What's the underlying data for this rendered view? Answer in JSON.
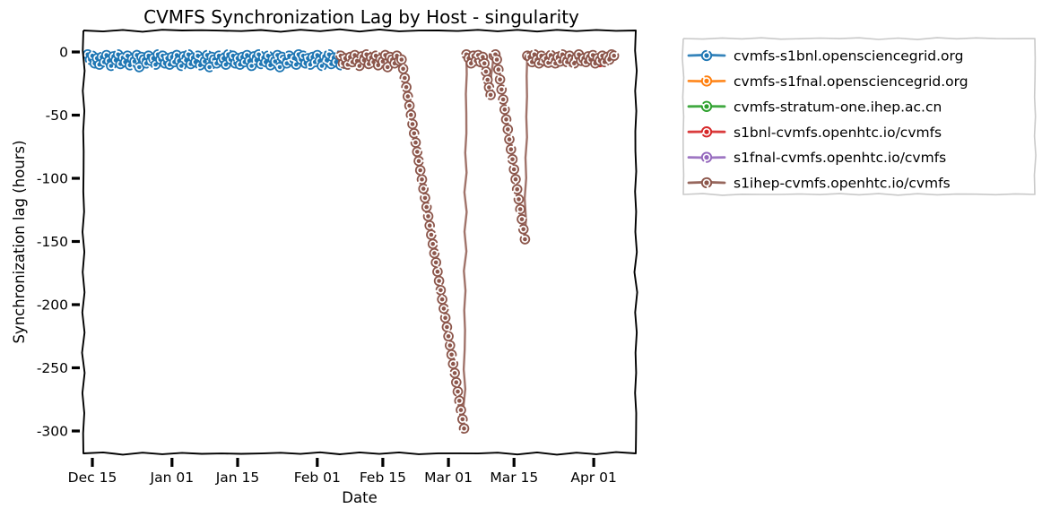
{
  "title": "CVMFS Synchronization Lag by Host - singularity",
  "axes": {
    "xlabel": "Date",
    "ylabel": "Synchronization lag (hours)",
    "x_ticks": [
      {
        "label": "Dec 15",
        "day": 0
      },
      {
        "label": "Jan 01",
        "day": 17
      },
      {
        "label": "Jan 15",
        "day": 31
      },
      {
        "label": "Feb 01",
        "day": 48
      },
      {
        "label": "Feb 15",
        "day": 62
      },
      {
        "label": "Mar 01",
        "day": 76
      },
      {
        "label": "Mar 15",
        "day": 90
      },
      {
        "label": "Apr 01",
        "day": 107
      }
    ],
    "y_ticks": [
      {
        "label": "0",
        "hours": 0
      },
      {
        "label": "-50",
        "hours": -50
      },
      {
        "label": "-100",
        "hours": -100
      },
      {
        "label": "-150",
        "hours": -150
      },
      {
        "label": "-200",
        "hours": -200
      },
      {
        "label": "-250",
        "hours": -250
      },
      {
        "label": "-300",
        "hours": -300
      }
    ],
    "x_domain_days": [
      -1.9,
      116.1
    ],
    "y_domain_hours": [
      17,
      -318
    ]
  },
  "legend": {
    "items": [
      {
        "label": "cvmfs-s1bnl.opensciencegrid.org",
        "color": "#1f77b4"
      },
      {
        "label": "cvmfs-s1fnal.opensciencegrid.org",
        "color": "#ff7f0e"
      },
      {
        "label": "cvmfs-stratum-one.ihep.ac.cn",
        "color": "#2ca02c"
      },
      {
        "label": "s1bnl-cvmfs.openhtc.io/cvmfs",
        "color": "#d62728"
      },
      {
        "label": "s1fnal-cvmfs.openhtc.io/cvmfs",
        "color": "#9467bd"
      },
      {
        "label": "s1ihep-cvmfs.openhtc.io/cvmfs",
        "color": "#8c564b"
      }
    ]
  },
  "style": {
    "background": "#ffffff",
    "axis_color": "#000000",
    "legend_border": "#c9c9c9",
    "text_color": "#000000"
  },
  "chart_data": {
    "type": "line",
    "style_note": "xkcd sketch style, circle markers, x in days since Dec 15",
    "title": "CVMFS Synchronization Lag by Host - singularity",
    "xlabel": "Date",
    "ylabel": "Synchronization lag (hours)",
    "x_unit": "days since Dec 15",
    "ylim": [
      -318,
      17
    ],
    "legend_position": "outside upper right",
    "series": [
      {
        "name": "cvmfs-s1bnl.opensciencegrid.org",
        "color": "#1f77b4",
        "points_visible": true,
        "segments": [
          {
            "start_day": -1.0,
            "step_days": 0.5,
            "lag_hours": [
              -2,
              -6,
              -3,
              -9,
              -5,
              -10,
              -4,
              -8,
              -2.5,
              -7,
              -11,
              -3.5,
              -6.5,
              -2,
              -9.5,
              -4.5,
              -8,
              -3,
              -10.5,
              -5.5,
              -7.5,
              -2.5,
              -12,
              -4,
              -6,
              -9,
              -3,
              -7,
              -5,
              -10,
              -2,
              -6,
              -3,
              -9,
              -5,
              -10,
              -4,
              -8,
              -2.5,
              -7,
              -11,
              -3.5,
              -6.5,
              -2,
              -9.5,
              -4.5,
              -8,
              -3,
              -10.5,
              -5.5,
              -7.5,
              -2.5,
              -12,
              -4,
              -6,
              -9,
              -3,
              -7,
              -5,
              -10,
              -2,
              -6,
              -3,
              -9,
              -5,
              -10,
              -4,
              -8,
              -2.5,
              -7,
              -11,
              -3.5,
              -6.5,
              -2,
              -9.5,
              -4.5,
              -8,
              -3,
              -10.5,
              -5.5,
              -7.5,
              -2.5,
              -12,
              -4,
              -6,
              -9,
              -3,
              -7,
              -5,
              -10,
              -2,
              -6,
              -3,
              -9,
              -5,
              -10,
              -4,
              -8,
              -2.5,
              -7,
              -11,
              -3.5,
              -6.5,
              -2,
              -9.5,
              -4.5,
              -8,
              -3,
              -10.5,
              -5.5
            ]
          }
        ]
      },
      {
        "name": "cvmfs-s1fnal.opensciencegrid.org",
        "color": "#ff7f0e",
        "points_visible": false,
        "segments": []
      },
      {
        "name": "cvmfs-stratum-one.ihep.ac.cn",
        "color": "#2ca02c",
        "points_visible": false,
        "segments": []
      },
      {
        "name": "s1bnl-cvmfs.openhtc.io/cvmfs",
        "color": "#d62728",
        "points_visible": true,
        "segments": [
          {
            "start_day": 108.3,
            "step_days": 0.5,
            "lag_hours": [
              -8
            ]
          }
        ]
      },
      {
        "name": "s1fnal-cvmfs.openhtc.io/cvmfs",
        "color": "#9467bd",
        "points_visible": false,
        "segments": []
      },
      {
        "name": "s1ihep-cvmfs.openhtc.io/cvmfs",
        "color": "#8c564b",
        "points_visible": true,
        "segments": [
          {
            "start_day": 53.0,
            "step_days": 0.5,
            "lag_hours": [
              -3,
              -9,
              -5,
              -10,
              -4,
              -8,
              -2.5,
              -7,
              -11,
              -3.5,
              -6.5,
              -2,
              -9.5,
              -4.5,
              -8,
              -3,
              -10.5,
              -5.5,
              -7.5,
              -2.5,
              -12,
              -4,
              -6,
              -9,
              -3,
              -7,
              -6
            ]
          },
          {
            "start_day": 66.3333,
            "step_days": 0.3333,
            "lag_hours": [
              -13.3,
              -20.6,
              -27.9,
              -35.2,
              -42.5,
              -49.8,
              -57.1,
              -64.4,
              -71.7,
              -79,
              -86.3,
              -93.6,
              -100.9,
              -108.2,
              -115.5,
              -122.8,
              -130.1,
              -137.4,
              -144.7,
              -152,
              -159.3,
              -166.6,
              -173.9,
              -181.2,
              -188.5,
              -195.8,
              -203.1,
              -210.4,
              -217.7,
              -225,
              -232.3,
              -239.6,
              -246.9,
              -254.2,
              -261.5,
              -268.8,
              -276.1,
              -283.4,
              -290.7,
              -298
            ]
          },
          {
            "start_day": 79.83,
            "step_days": 0.5,
            "lag_hours": [
              -2
            ]
          },
          {
            "start_day": 80.33,
            "step_days": 0.5,
            "lag_hours": [
              -5,
              -9,
              -3,
              -7,
              -2.5,
              -8,
              -4
            ]
          },
          {
            "start_day": 83.67,
            "step_days": 0.3333,
            "lag_hours": [
              -9,
              -15.5,
              -22,
              -28,
              -34
            ]
          },
          {
            "start_day": 85.67,
            "step_days": 0.3333,
            "lag_hours": [
              -3,
              -2
            ]
          },
          {
            "start_day": 86.3333,
            "step_days": 0.3333,
            "lag_hours": [
              -6,
              -13.9,
              -21.8,
              -29.7,
              -37.6,
              -45.5,
              -53.4,
              -61.3,
              -69.2,
              -77.1,
              -85,
              -92.9,
              -100.8,
              -108.7,
              -116.6,
              -124.5,
              -132.4,
              -140.3,
              -148.2
            ]
          },
          {
            "start_day": 92.83,
            "step_days": 0.5,
            "lag_hours": [
              -3
            ]
          },
          {
            "start_day": 93.33,
            "step_days": 0.5,
            "lag_hours": [
              -4,
              -8,
              -2,
              -6,
              -9,
              -3,
              -7,
              -5,
              -8.5,
              -2.5,
              -6,
              -9,
              -4,
              -7.5,
              -2,
              -5.5,
              -8,
              -3,
              -6.5,
              -9,
              -4.5,
              -2,
              -7,
              -5,
              -8,
              -3.5,
              -6,
              -2.5,
              -9,
              -5,
              -7,
              -3,
              -8,
              -4,
              -6,
              -2,
              -3
            ]
          }
        ]
      }
    ]
  }
}
